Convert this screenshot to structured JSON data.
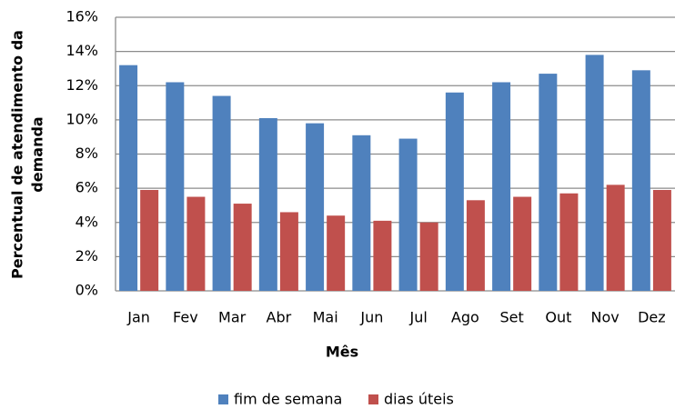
{
  "chart_data": {
    "type": "bar",
    "ylabel": [
      "Percentual de atendimento da",
      "demanda"
    ],
    "xlabel": "Mês",
    "categories": [
      "Jan",
      "Fev",
      "Mar",
      "Abr",
      "Mai",
      "Jun",
      "Jul",
      "Ago",
      "Set",
      "Out",
      "Nov",
      "Dez"
    ],
    "series": [
      {
        "name": "fim de semana",
        "color": "#4f81bd",
        "values": [
          13.2,
          12.2,
          11.4,
          10.1,
          9.8,
          9.1,
          8.9,
          11.6,
          12.2,
          12.7,
          13.8,
          12.9
        ]
      },
      {
        "name": "dias úteis",
        "color": "#c0504d",
        "values": [
          5.9,
          5.5,
          5.1,
          4.6,
          4.4,
          4.1,
          4.0,
          5.3,
          5.5,
          5.7,
          6.2,
          5.9
        ]
      }
    ],
    "ylim": [
      0,
      16
    ],
    "yticks": [
      {
        "value": 0,
        "label": "0%"
      },
      {
        "value": 2,
        "label": "2%"
      },
      {
        "value": 4,
        "label": "4%"
      },
      {
        "value": 6,
        "label": "6%"
      },
      {
        "value": 8,
        "label": "8%"
      },
      {
        "value": 10,
        "label": "10%"
      },
      {
        "value": 12,
        "label": "12%"
      },
      {
        "value": 14,
        "label": "14%"
      },
      {
        "value": 16,
        "label": "16%"
      }
    ],
    "grid": true,
    "legend": "bottom"
  }
}
